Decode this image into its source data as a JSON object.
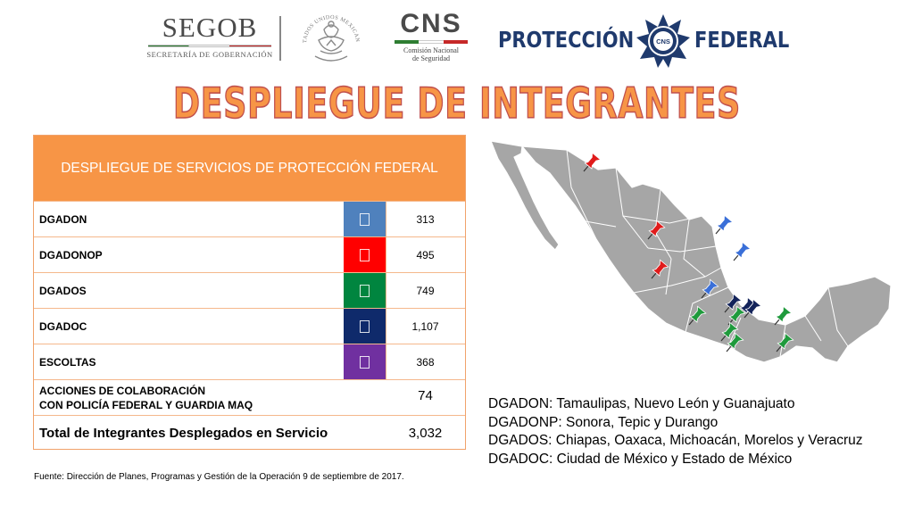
{
  "header": {
    "segob": {
      "name": "SEGOB",
      "subtitle": "SECRETARÍA DE GOBERNACIÓN"
    },
    "seal": {
      "ring_text": "ESTADOS UNIDOS MEXICANOS"
    },
    "cns": {
      "name": "CNS",
      "subtitle_line1": "Comisión Nacional",
      "subtitle_line2": "de Seguridad"
    },
    "policia": {
      "left": "PROTECCIÓN",
      "right": "FEDERAL",
      "badge_text": "CNS"
    }
  },
  "title": "DESPLIEGUE DE INTEGRANTES",
  "table": {
    "header": "DESPLIEGUE DE SERVICIOS DE PROTECCIÓN FEDERAL",
    "rows": [
      {
        "label": "DGADON",
        "color": "#4f81bd",
        "value": "313"
      },
      {
        "label": "DGADONOP",
        "color": "#ff0000",
        "value": "495"
      },
      {
        "label": "DGADOS",
        "color": "#00853f",
        "value": "749"
      },
      {
        "label": "DGADOC",
        "color": "#0f2a6b",
        "value": "1,107"
      },
      {
        "label": "ESCOLTAS",
        "color": "#7030a0",
        "value": "368"
      }
    ],
    "colab": {
      "line1": "ACCIONES DE COLABORACIÓN",
      "line2": "CON POLICÍA FEDERAL Y GUARDIA  MAQ",
      "value": "74"
    },
    "total": {
      "label": "Total de Integrantes Desplegados en Servicio",
      "value": "3,032"
    }
  },
  "source": "Fuente: Dirección de Planes, Programas y Gestión de la Operación 9 de septiembre de 2017.",
  "legend": [
    "DGADON: Tamaulipas, Nuevo León y Guanajuato",
    "DGADONP: Sonora, Tepic y Durango",
    "DGADOS: Chiapas, Oaxaca, Michoacán, Morelos y Veracruz",
    "DGADOC: Ciudad de México y Estado de México"
  ],
  "colors": {
    "title_fill": "#f79546",
    "title_stroke": "#c0504d",
    "table_header": "#f79546",
    "map_land": "#a6a6a6",
    "pin_blue": "#3a6fd8",
    "pin_red": "#e01b1b",
    "pin_green": "#1f9a3c",
    "pin_navy": "#13235a"
  }
}
